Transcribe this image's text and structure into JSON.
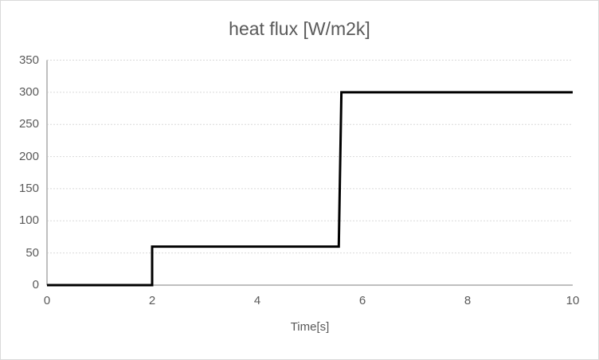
{
  "chart": {
    "title": "heat flux [W/m2k]",
    "x_axis_title": "Time[s]"
  },
  "chart_data": {
    "type": "line",
    "title": "heat flux [W/m2k]",
    "xlabel": "Time[s]",
    "ylabel": "",
    "xlim": [
      0,
      10
    ],
    "ylim": [
      0,
      350
    ],
    "x_ticks": [
      0,
      2,
      4,
      6,
      8,
      10
    ],
    "y_ticks": [
      0,
      50,
      100,
      150,
      200,
      250,
      300,
      350
    ],
    "grid": "horizontal-dotted",
    "legend_position": "none",
    "series": [
      {
        "name": "heat flux",
        "color": "#000000",
        "points": [
          [
            0,
            0
          ],
          [
            2,
            0
          ],
          [
            2,
            60
          ],
          [
            5.55,
            60
          ],
          [
            5.6,
            300
          ],
          [
            10,
            300
          ]
        ]
      }
    ],
    "step_description": "flux 0 W/m2k until t=2s, 60 W/m2k until t=5.55s, 300 W/m2k until t=10s"
  },
  "colors": {
    "background": "#ffffff",
    "outer_border": "#d9d9d9",
    "title_text": "#595959",
    "axis_text": "#595959",
    "gridline": "#d9d9d9",
    "axis_line": "#bfbfbf",
    "series_line": "#000000"
  }
}
